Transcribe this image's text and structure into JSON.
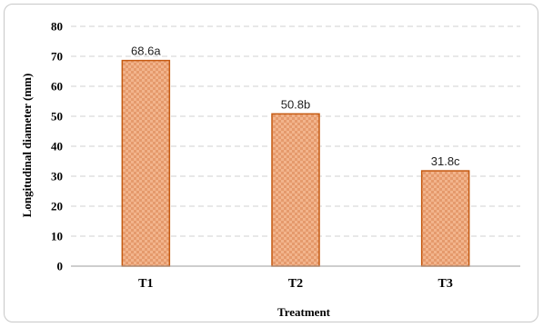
{
  "chart_data": {
    "type": "bar",
    "categories": [
      "T1",
      "T2",
      "T3"
    ],
    "values": [
      68.6,
      50.8,
      31.8
    ],
    "data_labels": [
      "68.6a",
      "50.8b",
      "31.8c"
    ],
    "title": "",
    "xlabel": "Treatment",
    "ylabel": "Longitudinal diameter (mm)",
    "ylim": [
      0,
      80
    ],
    "yticks": [
      0,
      10,
      20,
      30,
      40,
      50,
      60,
      70,
      80
    ],
    "grid": "horizontal dashed",
    "legend": "none",
    "colors": {
      "bar_fill": "#f2b48c",
      "bar_pattern": "#e59a6c",
      "bar_stroke": "#c55a11",
      "grid": "#d0d0d0",
      "axis": "#9e9e9e"
    }
  }
}
